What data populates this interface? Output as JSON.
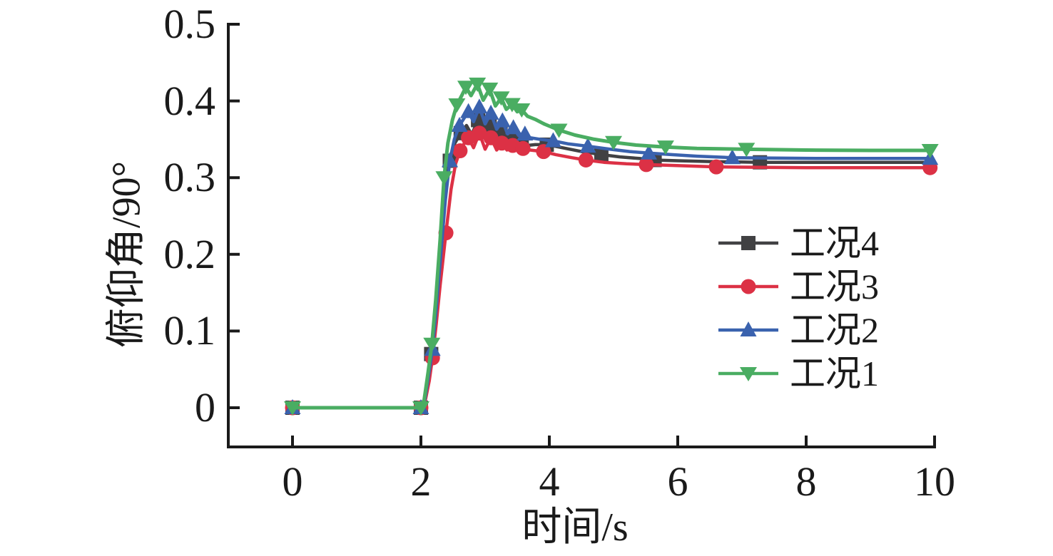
{
  "figure": {
    "background": "#ffffff",
    "axis_color": "#1a1a1a",
    "text_color": "#1a1a1a"
  },
  "chart_data": {
    "type": "line",
    "title": "",
    "xlabel": "时间/s",
    "ylabel": "俯仰角/90°",
    "xlim": [
      -1,
      10
    ],
    "ylim": [
      -0.05,
      0.5
    ],
    "grid": false,
    "legend_position": "center-right",
    "x_ticks": [
      0,
      2,
      4,
      6,
      8,
      10
    ],
    "x_tick_labels": [
      "0",
      "2",
      "4",
      "6",
      "8",
      "10"
    ],
    "y_ticks": [
      0,
      0.1,
      0.2,
      0.3,
      0.4,
      0.5
    ],
    "y_tick_labels": [
      "0",
      "0.1",
      "0.2",
      "0.3",
      "0.4",
      "0.5"
    ],
    "series": [
      {
        "name": "工况4",
        "color": "#414143",
        "marker": "square",
        "line_width": 4.5,
        "steady_state": 0.32,
        "peak": 0.375,
        "points": [
          [
            0,
            0
          ],
          [
            0.5,
            0
          ],
          [
            1,
            0
          ],
          [
            1.5,
            0
          ],
          [
            2,
            0
          ],
          [
            2.06,
            0.01
          ],
          [
            2.11,
            0.04
          ],
          [
            2.16,
            0.07
          ],
          [
            2.21,
            0.115
          ],
          [
            2.27,
            0.175
          ],
          [
            2.33,
            0.245
          ],
          [
            2.39,
            0.295
          ],
          [
            2.45,
            0.322
          ],
          [
            2.53,
            0.345
          ],
          [
            2.62,
            0.358
          ],
          [
            2.71,
            0.368
          ],
          [
            2.79,
            0.356
          ],
          [
            2.89,
            0.375
          ],
          [
            2.98,
            0.354
          ],
          [
            3.07,
            0.367
          ],
          [
            3.16,
            0.349
          ],
          [
            3.24,
            0.359
          ],
          [
            3.32,
            0.346
          ],
          [
            3.41,
            0.352
          ],
          [
            3.49,
            0.344
          ],
          [
            3.57,
            0.347
          ],
          [
            3.66,
            0.342
          ],
          [
            3.78,
            0.343
          ],
          [
            3.96,
            0.343
          ],
          [
            4.2,
            0.339
          ],
          [
            4.5,
            0.334
          ],
          [
            4.81,
            0.33
          ],
          [
            5.1,
            0.327
          ],
          [
            5.4,
            0.325
          ],
          [
            5.64,
            0.323
          ],
          [
            6.0,
            0.322
          ],
          [
            6.5,
            0.321
          ],
          [
            7.28,
            0.32
          ],
          [
            8,
            0.32
          ],
          [
            9,
            0.32
          ],
          [
            9.95,
            0.32
          ]
        ],
        "marker_t": [
          0,
          2.0,
          2.16,
          2.45,
          2.62,
          2.89,
          3.07,
          3.24,
          3.41,
          3.57,
          3.96,
          4.81,
          5.64,
          7.28
        ]
      },
      {
        "name": "工况3",
        "color": "#DC3145",
        "marker": "circle",
        "line_width": 4.5,
        "steady_state": 0.313,
        "peak": 0.358,
        "points": [
          [
            0,
            0
          ],
          [
            0.5,
            0
          ],
          [
            1,
            0
          ],
          [
            1.5,
            0
          ],
          [
            2,
            0
          ],
          [
            2.07,
            0.01
          ],
          [
            2.13,
            0.035
          ],
          [
            2.18,
            0.065
          ],
          [
            2.24,
            0.11
          ],
          [
            2.3,
            0.16
          ],
          [
            2.39,
            0.228
          ],
          [
            2.47,
            0.285
          ],
          [
            2.54,
            0.318
          ],
          [
            2.61,
            0.335
          ],
          [
            2.67,
            0.344
          ],
          [
            2.74,
            0.352
          ],
          [
            2.82,
            0.339
          ],
          [
            2.91,
            0.358
          ],
          [
            3.0,
            0.337
          ],
          [
            3.09,
            0.352
          ],
          [
            3.18,
            0.336
          ],
          [
            3.26,
            0.345
          ],
          [
            3.34,
            0.336
          ],
          [
            3.43,
            0.342
          ],
          [
            3.51,
            0.336
          ],
          [
            3.59,
            0.338
          ],
          [
            3.7,
            0.336
          ],
          [
            3.91,
            0.334
          ],
          [
            4.1,
            0.33
          ],
          [
            4.35,
            0.326
          ],
          [
            4.57,
            0.323
          ],
          [
            4.85,
            0.32
          ],
          [
            5.2,
            0.318
          ],
          [
            5.51,
            0.317
          ],
          [
            5.9,
            0.316
          ],
          [
            6.6,
            0.314
          ],
          [
            7.3,
            0.3135
          ],
          [
            8,
            0.313
          ],
          [
            9,
            0.313
          ],
          [
            9.95,
            0.313
          ]
        ],
        "marker_t": [
          0,
          2.0,
          2.18,
          2.39,
          2.61,
          2.74,
          2.91,
          3.09,
          3.26,
          3.43,
          3.59,
          3.91,
          4.57,
          5.51,
          6.6,
          9.93
        ]
      },
      {
        "name": "工况2",
        "color": "#3A62AE",
        "marker": "triangle-up",
        "line_width": 4.5,
        "steady_state": 0.325,
        "peak": 0.392,
        "points": [
          [
            0,
            0
          ],
          [
            0.5,
            0
          ],
          [
            1,
            0
          ],
          [
            1.5,
            0
          ],
          [
            2,
            0
          ],
          [
            2.06,
            0.01
          ],
          [
            2.12,
            0.042
          ],
          [
            2.18,
            0.076
          ],
          [
            2.24,
            0.13
          ],
          [
            2.31,
            0.2
          ],
          [
            2.38,
            0.27
          ],
          [
            2.45,
            0.322
          ],
          [
            2.52,
            0.35
          ],
          [
            2.6,
            0.368
          ],
          [
            2.67,
            0.377
          ],
          [
            2.74,
            0.386
          ],
          [
            2.82,
            0.373
          ],
          [
            2.91,
            0.392
          ],
          [
            3.0,
            0.37
          ],
          [
            3.09,
            0.384
          ],
          [
            3.18,
            0.363
          ],
          [
            3.27,
            0.374
          ],
          [
            3.35,
            0.357
          ],
          [
            3.44,
            0.365
          ],
          [
            3.52,
            0.355
          ],
          [
            3.6,
            0.358
          ],
          [
            3.7,
            0.352
          ],
          [
            3.85,
            0.35
          ],
          [
            4.06,
            0.348
          ],
          [
            4.3,
            0.344
          ],
          [
            4.6,
            0.341
          ],
          [
            4.95,
            0.337
          ],
          [
            5.25,
            0.334
          ],
          [
            5.55,
            0.332
          ],
          [
            5.9,
            0.33
          ],
          [
            6.3,
            0.328
          ],
          [
            6.85,
            0.326
          ],
          [
            7.5,
            0.3255
          ],
          [
            8.2,
            0.325
          ],
          [
            9,
            0.325
          ],
          [
            9.95,
            0.325
          ]
        ],
        "marker_t": [
          0,
          2.0,
          2.18,
          2.45,
          2.6,
          2.74,
          2.91,
          3.09,
          3.27,
          3.44,
          3.62,
          4.06,
          4.6,
          5.55,
          6.85,
          9.93
        ]
      },
      {
        "name": "工况1",
        "color": "#4AAD62",
        "marker": "triangle-down",
        "line_width": 5,
        "steady_state": 0.335,
        "peak": 0.422,
        "points": [
          [
            0,
            0
          ],
          [
            0.5,
            0
          ],
          [
            1,
            0
          ],
          [
            1.5,
            0
          ],
          [
            2,
            0
          ],
          [
            2.05,
            0.01
          ],
          [
            2.11,
            0.045
          ],
          [
            2.17,
            0.083
          ],
          [
            2.23,
            0.14
          ],
          [
            2.3,
            0.22
          ],
          [
            2.36,
            0.3
          ],
          [
            2.42,
            0.345
          ],
          [
            2.49,
            0.375
          ],
          [
            2.56,
            0.395
          ],
          [
            2.63,
            0.406
          ],
          [
            2.7,
            0.418
          ],
          [
            2.78,
            0.407
          ],
          [
            2.88,
            0.422
          ],
          [
            2.97,
            0.401
          ],
          [
            3.07,
            0.4155
          ],
          [
            3.16,
            0.3935
          ],
          [
            3.25,
            0.404
          ],
          [
            3.33,
            0.389
          ],
          [
            3.42,
            0.3955
          ],
          [
            3.5,
            0.386
          ],
          [
            3.57,
            0.3885
          ],
          [
            3.66,
            0.38
          ],
          [
            3.78,
            0.376
          ],
          [
            3.92,
            0.37
          ],
          [
            4.15,
            0.362
          ],
          [
            4.4,
            0.3555
          ],
          [
            4.7,
            0.35
          ],
          [
            5.0,
            0.346
          ],
          [
            5.35,
            0.3425
          ],
          [
            5.81,
            0.34
          ],
          [
            6.3,
            0.338
          ],
          [
            7.07,
            0.337
          ],
          [
            8,
            0.336
          ],
          [
            9,
            0.3355
          ],
          [
            9.95,
            0.3355
          ]
        ],
        "marker_t": [
          0,
          2.0,
          2.17,
          2.36,
          2.56,
          2.7,
          2.88,
          3.07,
          3.25,
          3.42,
          3.57,
          4.15,
          5.0,
          5.81,
          7.07,
          9.93
        ]
      }
    ]
  }
}
